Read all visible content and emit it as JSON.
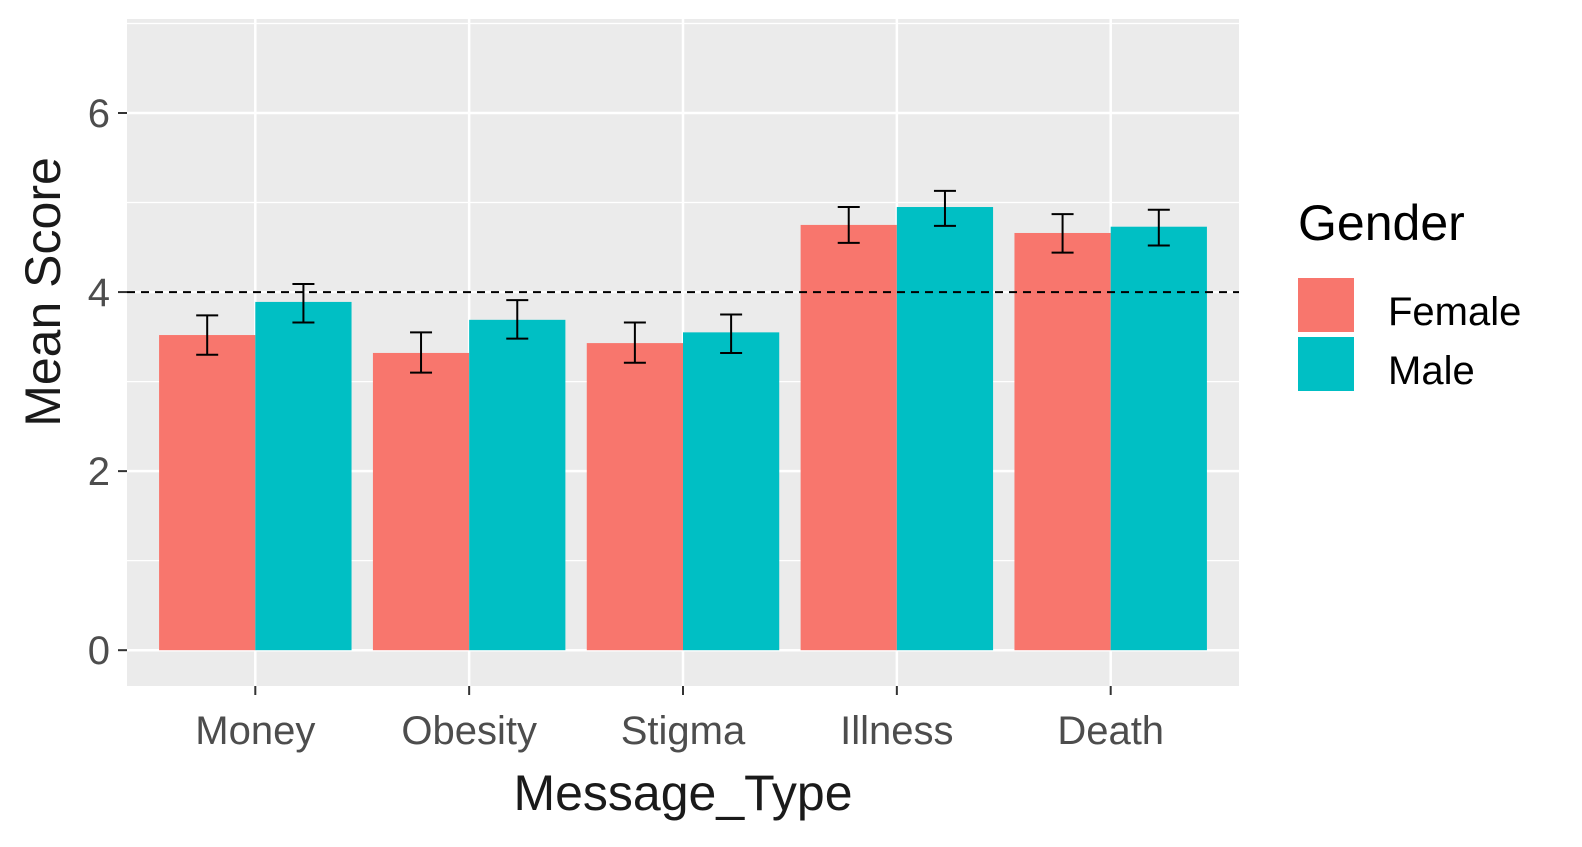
{
  "chart_data": {
    "type": "bar",
    "title": "",
    "xlabel": "Message_Type",
    "ylabel": "Mean Score",
    "categories": [
      "Money",
      "Obesity",
      "Stigma",
      "Illness",
      "Death"
    ],
    "series": [
      {
        "name": "Female",
        "color": "#F8766D",
        "values": [
          3.52,
          3.32,
          3.43,
          4.75,
          4.66
        ],
        "error_low": [
          3.3,
          3.1,
          3.21,
          4.55,
          4.44
        ],
        "error_high": [
          3.74,
          3.55,
          3.66,
          4.95,
          4.87
        ]
      },
      {
        "name": "Male",
        "color": "#00BFC4",
        "values": [
          3.89,
          3.69,
          3.55,
          4.95,
          4.73
        ],
        "error_low": [
          3.66,
          3.48,
          3.32,
          4.74,
          4.52
        ],
        "error_high": [
          4.09,
          3.91,
          3.75,
          5.13,
          4.92
        ]
      }
    ],
    "reference_line": 4,
    "ylim": [
      -0.4,
      7.05
    ],
    "yticks": [
      0,
      2,
      4,
      6
    ],
    "grid": true,
    "legend": {
      "title": "Gender",
      "position": "right"
    }
  }
}
